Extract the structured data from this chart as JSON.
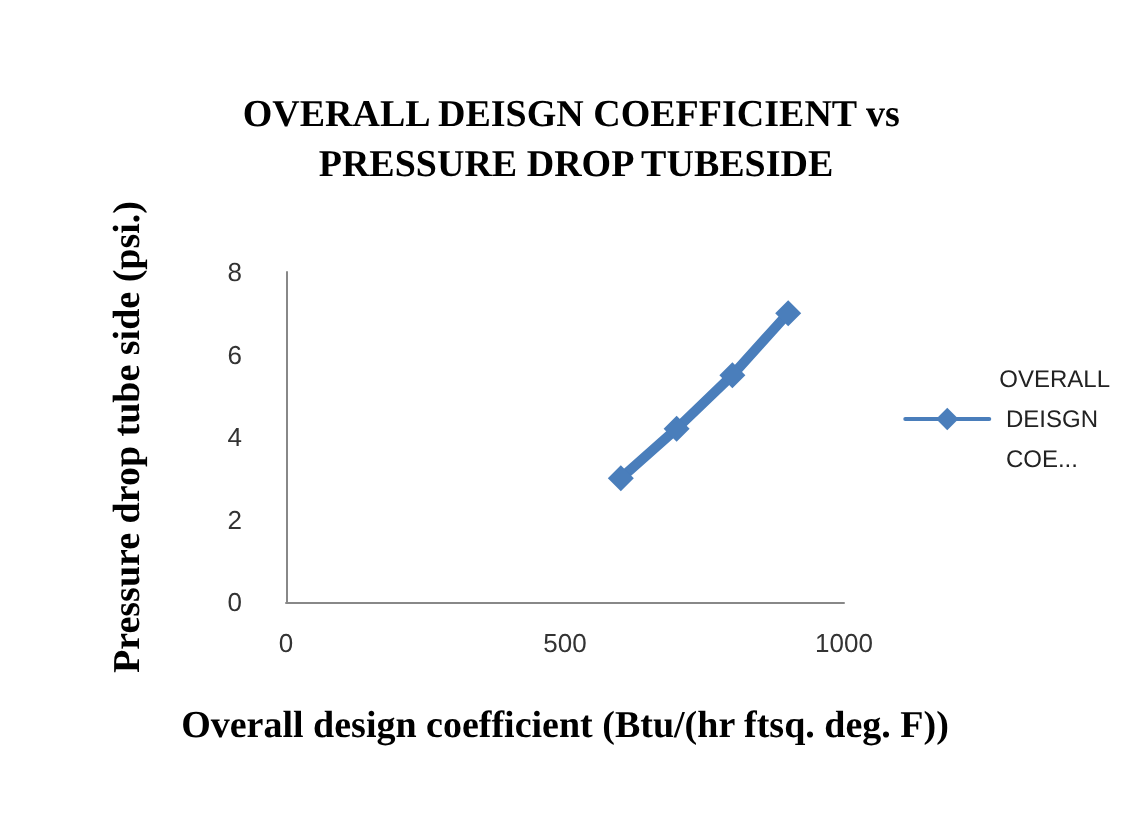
{
  "chart_data": {
    "type": "line",
    "title": "OVERALL DEISGN COEFFICIENT vs PRESSURE DROP TUBESIDE",
    "xlabel": "Overall design coefficient (Btu/(hr ftsq. deg. F))",
    "ylabel": "Pressure drop tube side (psi.)",
    "x": [
      600,
      700,
      800,
      900
    ],
    "series": [
      {
        "name": "OVERALL DEISGN COE...",
        "color": "#4a7ebb",
        "values": [
          3,
          4.2,
          5.5,
          7
        ]
      }
    ],
    "xlim": [
      0,
      1000
    ],
    "xticks": [
      0,
      500,
      1000
    ],
    "ylim": [
      0,
      8
    ],
    "yticks": [
      0,
      2,
      4,
      6,
      8
    ],
    "grid": false,
    "legend": "right",
    "marker": "diamond",
    "line_style": "solid"
  }
}
